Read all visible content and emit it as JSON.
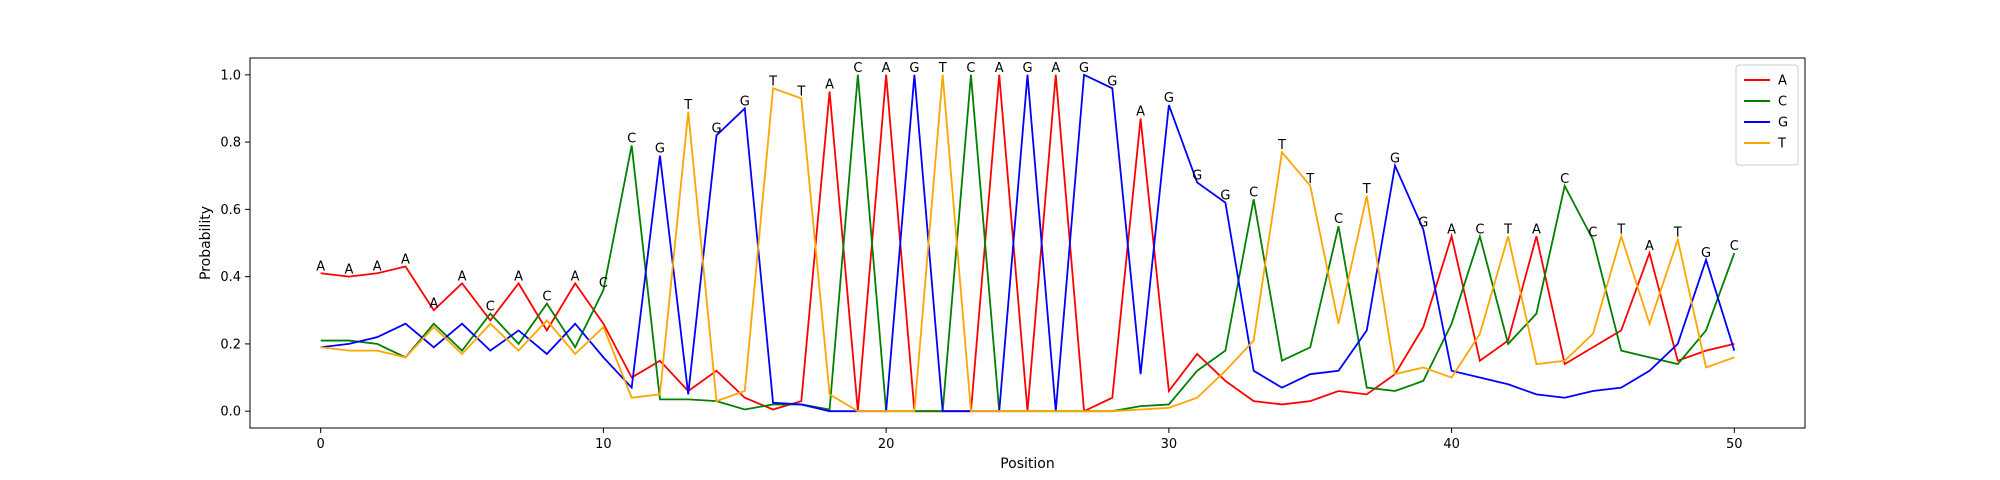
{
  "chart_data": {
    "type": "line",
    "xlabel": "Position",
    "ylabel": "Probability",
    "xlim": [
      -2.5,
      52.5
    ],
    "ylim": [
      -0.05,
      1.05
    ],
    "xticks": [
      0,
      10,
      20,
      30,
      40,
      50
    ],
    "yticks": [
      0.0,
      0.2,
      0.4,
      0.6,
      0.8,
      1.0
    ],
    "xtick_labels": [
      "0",
      "10",
      "20",
      "30",
      "40",
      "50"
    ],
    "ytick_labels": [
      "0.0",
      "0.2",
      "0.4",
      "0.6",
      "0.8",
      "1.0"
    ],
    "grid": false,
    "legend_position": "top-right",
    "x": [
      0,
      1,
      2,
      3,
      4,
      5,
      6,
      7,
      8,
      9,
      10,
      11,
      12,
      13,
      14,
      15,
      16,
      17,
      18,
      19,
      20,
      21,
      22,
      23,
      24,
      25,
      26,
      27,
      28,
      29,
      30,
      31,
      32,
      33,
      34,
      35,
      36,
      37,
      38,
      39,
      40,
      41,
      42,
      43,
      44,
      45,
      46,
      47,
      48,
      49,
      50
    ],
    "series": [
      {
        "name": "A",
        "color": "#ff0000",
        "values": [
          0.41,
          0.4,
          0.41,
          0.43,
          0.3,
          0.38,
          0.27,
          0.38,
          0.24,
          0.38,
          0.26,
          0.1,
          0.15,
          0.06,
          0.12,
          0.04,
          0.005,
          0.03,
          0.95,
          0.0,
          1.0,
          0.0,
          0.0,
          0.0,
          1.0,
          0.0,
          1.0,
          0.0,
          0.04,
          0.87,
          0.06,
          0.17,
          0.09,
          0.03,
          0.02,
          0.03,
          0.06,
          0.05,
          0.11,
          0.25,
          0.52,
          0.15,
          0.21,
          0.52,
          0.14,
          0.19,
          0.24,
          0.47,
          0.15,
          0.18,
          0.2
        ]
      },
      {
        "name": "C",
        "color": "#008000",
        "values": [
          0.21,
          0.21,
          0.2,
          0.16,
          0.26,
          0.18,
          0.29,
          0.2,
          0.32,
          0.19,
          0.36,
          0.79,
          0.035,
          0.035,
          0.03,
          0.005,
          0.02,
          0.02,
          0.005,
          1.0,
          0.0,
          0.0,
          0.0,
          1.0,
          0.0,
          0.0,
          0.0,
          0.0,
          0.0,
          0.015,
          0.02,
          0.12,
          0.18,
          0.63,
          0.15,
          0.19,
          0.55,
          0.07,
          0.06,
          0.09,
          0.26,
          0.52,
          0.2,
          0.29,
          0.67,
          0.51,
          0.18,
          0.16,
          0.14,
          0.24,
          0.47
        ]
      },
      {
        "name": "G",
        "color": "#0000ff",
        "values": [
          0.19,
          0.2,
          0.22,
          0.26,
          0.19,
          0.26,
          0.18,
          0.24,
          0.17,
          0.26,
          0.16,
          0.07,
          0.76,
          0.05,
          0.82,
          0.9,
          0.025,
          0.02,
          0.0,
          0.0,
          0.0,
          1.0,
          0.0,
          0.0,
          0.0,
          1.0,
          0.0,
          1.0,
          0.96,
          0.11,
          0.91,
          0.68,
          0.62,
          0.12,
          0.07,
          0.11,
          0.12,
          0.24,
          0.73,
          0.54,
          0.12,
          0.1,
          0.08,
          0.05,
          0.04,
          0.06,
          0.07,
          0.12,
          0.2,
          0.45,
          0.18
        ]
      },
      {
        "name": "T",
        "color": "#ffa500",
        "values": [
          0.19,
          0.18,
          0.18,
          0.16,
          0.25,
          0.17,
          0.26,
          0.18,
          0.27,
          0.17,
          0.25,
          0.04,
          0.05,
          0.89,
          0.03,
          0.06,
          0.96,
          0.93,
          0.05,
          0.0,
          0.0,
          0.0,
          1.0,
          0.0,
          0.0,
          0.0,
          0.0,
          0.0,
          0.0,
          0.005,
          0.01,
          0.04,
          0.12,
          0.21,
          0.77,
          0.67,
          0.26,
          0.64,
          0.11,
          0.13,
          0.1,
          0.23,
          0.52,
          0.14,
          0.15,
          0.23,
          0.52,
          0.26,
          0.51,
          0.13,
          0.16
        ]
      }
    ],
    "point_labels": [
      "A",
      "A",
      "A",
      "A",
      "A",
      "A",
      "C",
      "A",
      "C",
      "A",
      "C",
      "C",
      "G",
      "T",
      "G",
      "G",
      "T",
      "T",
      "A",
      "C",
      "A",
      "G",
      "T",
      "C",
      "A",
      "G",
      "A",
      "G",
      "G",
      "A",
      "G",
      "G",
      "G",
      "C",
      "T",
      "T",
      "C",
      "T",
      "G",
      "G",
      "A",
      "C",
      "T",
      "A",
      "C",
      "C",
      "T",
      "A",
      "T",
      "G",
      "C"
    ]
  }
}
